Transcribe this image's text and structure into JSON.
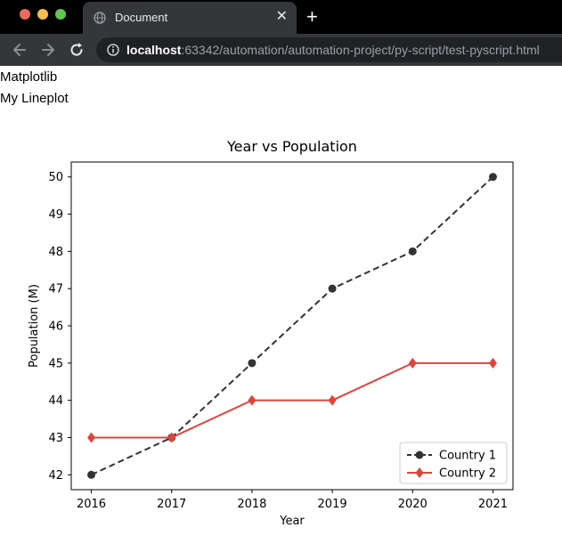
{
  "browser": {
    "tab": {
      "title": "Document",
      "close_glyph": "✕",
      "icon": "globe-icon"
    },
    "new_tab_glyph": "+",
    "url_host": "localhost",
    "url_rest": ":63342/automation/automation-project/py-script/test-pyscript.html",
    "traffic_colors": [
      "#ed6a5e",
      "#f5bf4f",
      "#61c554"
    ]
  },
  "content": {
    "line1": "Matplotlib",
    "line2": "My Lineplot"
  },
  "chart_data": {
    "type": "line",
    "title": "Year vs Population",
    "xlabel": "Year",
    "ylabel": "Population (M)",
    "x": [
      2016,
      2017,
      2018,
      2019,
      2020,
      2021
    ],
    "xticks": [
      "2016",
      "2017",
      "2018",
      "2019",
      "2020",
      "2021"
    ],
    "yticks": [
      "42",
      "43",
      "44",
      "45",
      "46",
      "47",
      "48",
      "49",
      "50"
    ],
    "ylim": [
      41.6,
      50.4
    ],
    "grid": false,
    "legend_position": "lower-right",
    "series": [
      {
        "name": "Country 1",
        "values": [
          42,
          43,
          45,
          47,
          48,
          50
        ],
        "color": "#333333",
        "linestyle": "dashed",
        "marker": "circle"
      },
      {
        "name": "Country 2",
        "values": [
          43,
          43,
          44,
          44,
          45,
          45
        ],
        "color": "#e0443a",
        "linestyle": "solid",
        "marker": "diamond"
      }
    ]
  }
}
